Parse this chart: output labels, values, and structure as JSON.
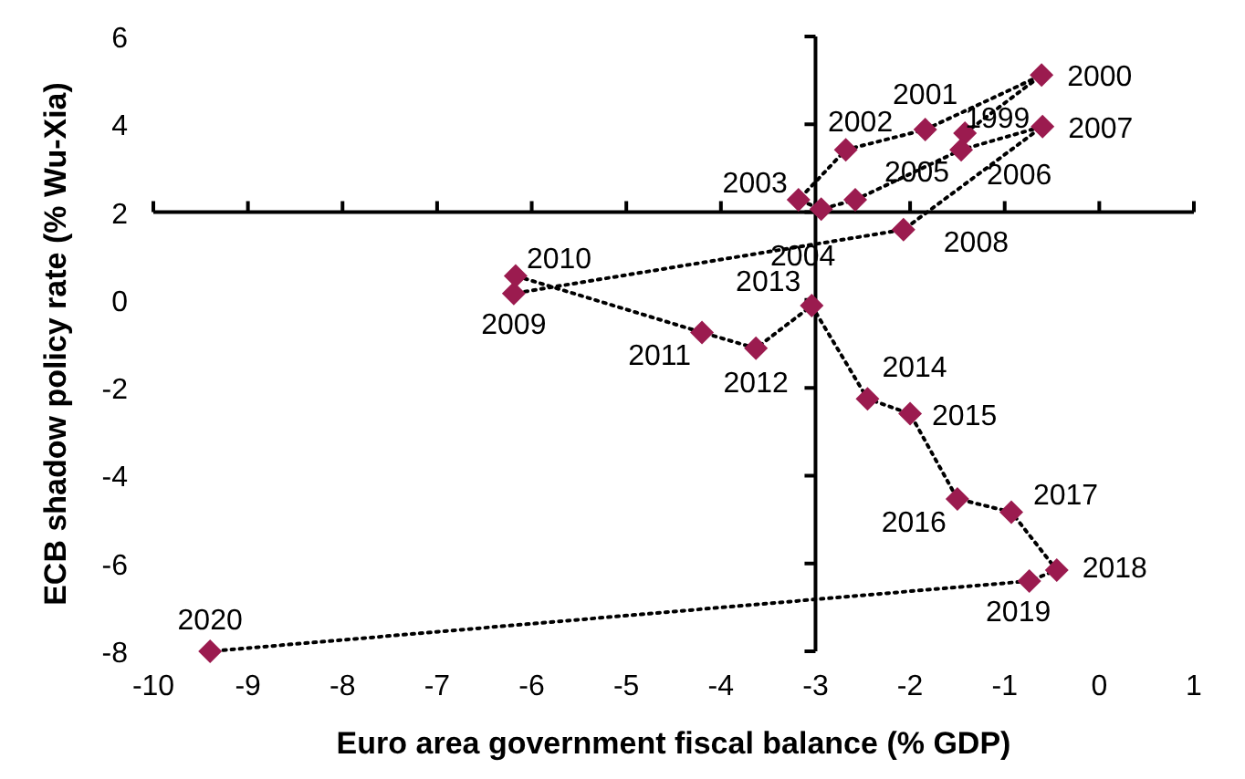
{
  "chart_data": {
    "type": "line",
    "xlabel": "Euro area government fiscal balance (% GDP)",
    "ylabel": "ECB shadow policy rate (% Wu-Xia)",
    "xlim": [
      -10,
      1
    ],
    "ylim": [
      -8,
      6
    ],
    "xticks": [
      -10,
      -9,
      -8,
      -7,
      -6,
      -5,
      -4,
      -3,
      -2,
      -1,
      0,
      1
    ],
    "yticks": [
      -8,
      -6,
      -4,
      -2,
      0,
      2,
      4,
      6
    ],
    "marker": "diamond",
    "line_style": "dotted",
    "series": [
      {
        "color": "#9b1b4f",
        "x": [
          -1.42,
          -0.61,
          -1.84,
          -2.68,
          -3.18,
          -2.94,
          -2.58,
          -1.46,
          -0.6,
          -2.07,
          -6.19,
          -6.17,
          -4.2,
          -3.63,
          -3.04,
          -2.45,
          -2.0,
          -1.5,
          -0.93,
          -0.45,
          -0.74,
          -9.4
        ],
        "values": [
          3.8,
          5.12,
          3.88,
          3.42,
          2.28,
          2.07,
          2.28,
          3.42,
          3.95,
          1.6,
          0.15,
          0.55,
          -0.74,
          -1.1,
          -0.13,
          -2.25,
          -2.59,
          -4.53,
          -4.83,
          -6.15,
          -6.4,
          -8.0
        ]
      }
    ],
    "annotations": [
      {
        "text": "1999",
        "x": -1.42,
        "y": 3.8
      },
      {
        "text": "2000",
        "x": -0.61,
        "y": 5.12
      },
      {
        "text": "2001",
        "x": -1.84,
        "y": 3.88
      },
      {
        "text": "2002",
        "x": -2.68,
        "y": 3.42
      },
      {
        "text": "2003",
        "x": -3.18,
        "y": 2.28
      },
      {
        "text": "2004",
        "x": -2.94,
        "y": 2.07
      },
      {
        "text": "2005",
        "x": -2.58,
        "y": 2.28
      },
      {
        "text": "2006",
        "x": -1.46,
        "y": 3.42
      },
      {
        "text": "2007",
        "x": -0.6,
        "y": 3.95
      },
      {
        "text": "2008",
        "x": -2.07,
        "y": 1.6
      },
      {
        "text": "2009",
        "x": -6.19,
        "y": 0.15
      },
      {
        "text": "2010",
        "x": -6.17,
        "y": 0.55
      },
      {
        "text": "2011",
        "x": -4.2,
        "y": -0.74
      },
      {
        "text": "2012",
        "x": -3.63,
        "y": -1.1
      },
      {
        "text": "2013",
        "x": -3.04,
        "y": -0.13
      },
      {
        "text": "2014",
        "x": -2.45,
        "y": -2.25
      },
      {
        "text": "2015",
        "x": -2.0,
        "y": -2.59
      },
      {
        "text": "2016",
        "x": -1.5,
        "y": -4.53
      },
      {
        "text": "2017",
        "x": -0.93,
        "y": -4.83
      },
      {
        "text": "2018",
        "x": -0.45,
        "y": -6.15
      },
      {
        "text": "2019",
        "x": -0.74,
        "y": -6.4
      },
      {
        "text": "2020",
        "x": -9.4,
        "y": -8.0
      }
    ]
  }
}
